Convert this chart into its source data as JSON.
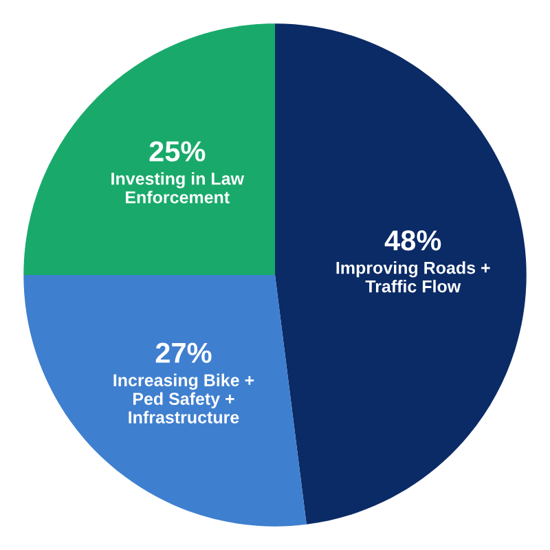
{
  "chart_data": {
    "type": "pie",
    "categories": [
      "Improving Roads +\nTraffic Flow",
      "Increasing Bike +\nPed Safety +\nInfrastructure",
      "Investing in Law\nEnforcement"
    ],
    "values": [
      48,
      27,
      25
    ],
    "value_labels": [
      "48%",
      "27%",
      "25%"
    ],
    "colors": [
      "#0b2b66",
      "#3f7fcf",
      "#19aa6b"
    ]
  }
}
